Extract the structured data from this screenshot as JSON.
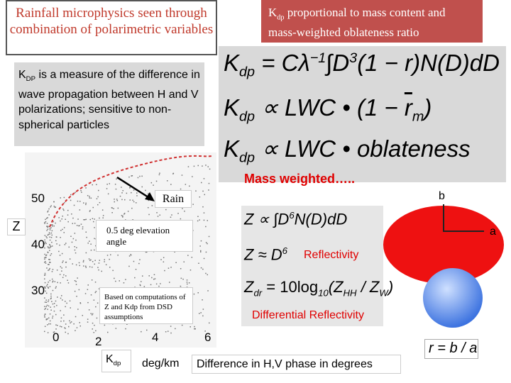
{
  "title_box": {
    "text": "Rainfall microphysics seen through combination of polarimetric variables"
  },
  "kdp_box": {
    "parts": [
      "K",
      "dp",
      " proportional to mass content and mass-weighted oblateness ratio"
    ]
  },
  "kdp_equations": {
    "eq1": [
      "K",
      "dp",
      " = Cλ",
      "−1",
      "∫",
      "D",
      "3",
      "(1 − r)N(D)dD"
    ],
    "eq2": [
      "K",
      "dp",
      " ∝ LWC • (1 − ",
      "r",
      "m",
      ")"
    ],
    "eq3": [
      "K",
      "dp",
      " ∝ LWC • ",
      "oblateness"
    ],
    "note": "Mass weighted….."
  },
  "kdp_description": {
    "parts": [
      "K",
      "DP",
      " is a measure of the difference in wave propagation between H and V polarizations; sensitive to non-spherical particles"
    ]
  },
  "plot": {
    "y_axis_title": "Z",
    "y_labels": [
      "50",
      "40",
      "30"
    ],
    "x_labels": [
      "0",
      "2",
      "4",
      "6"
    ],
    "x_unit": [
      "K",
      "dp"
    ],
    "x_unit_text": "deg/km",
    "x_description": "Difference in H,V phase in degrees",
    "annotations": [
      "Rain",
      "0.5 deg elevation angle",
      "Based on computations of Z and Kdp from DSD assumptions"
    ]
  },
  "z_equations": {
    "eq1": [
      "Z ∝ ",
      "∫",
      "D",
      "6",
      "N(D)dD"
    ],
    "eq2": [
      "Z ≈ D",
      "6"
    ],
    "eq3": [
      "Z",
      "dr",
      " = 10log",
      "10",
      "(Z",
      "HH",
      " / Z",
      "W",
      ")"
    ],
    "label1": "Reflectivity",
    "label2": "Differential Reflectivity"
  },
  "shapes": {
    "b_label": "b",
    "a_label": "a",
    "ratio": "r = b / a"
  }
}
